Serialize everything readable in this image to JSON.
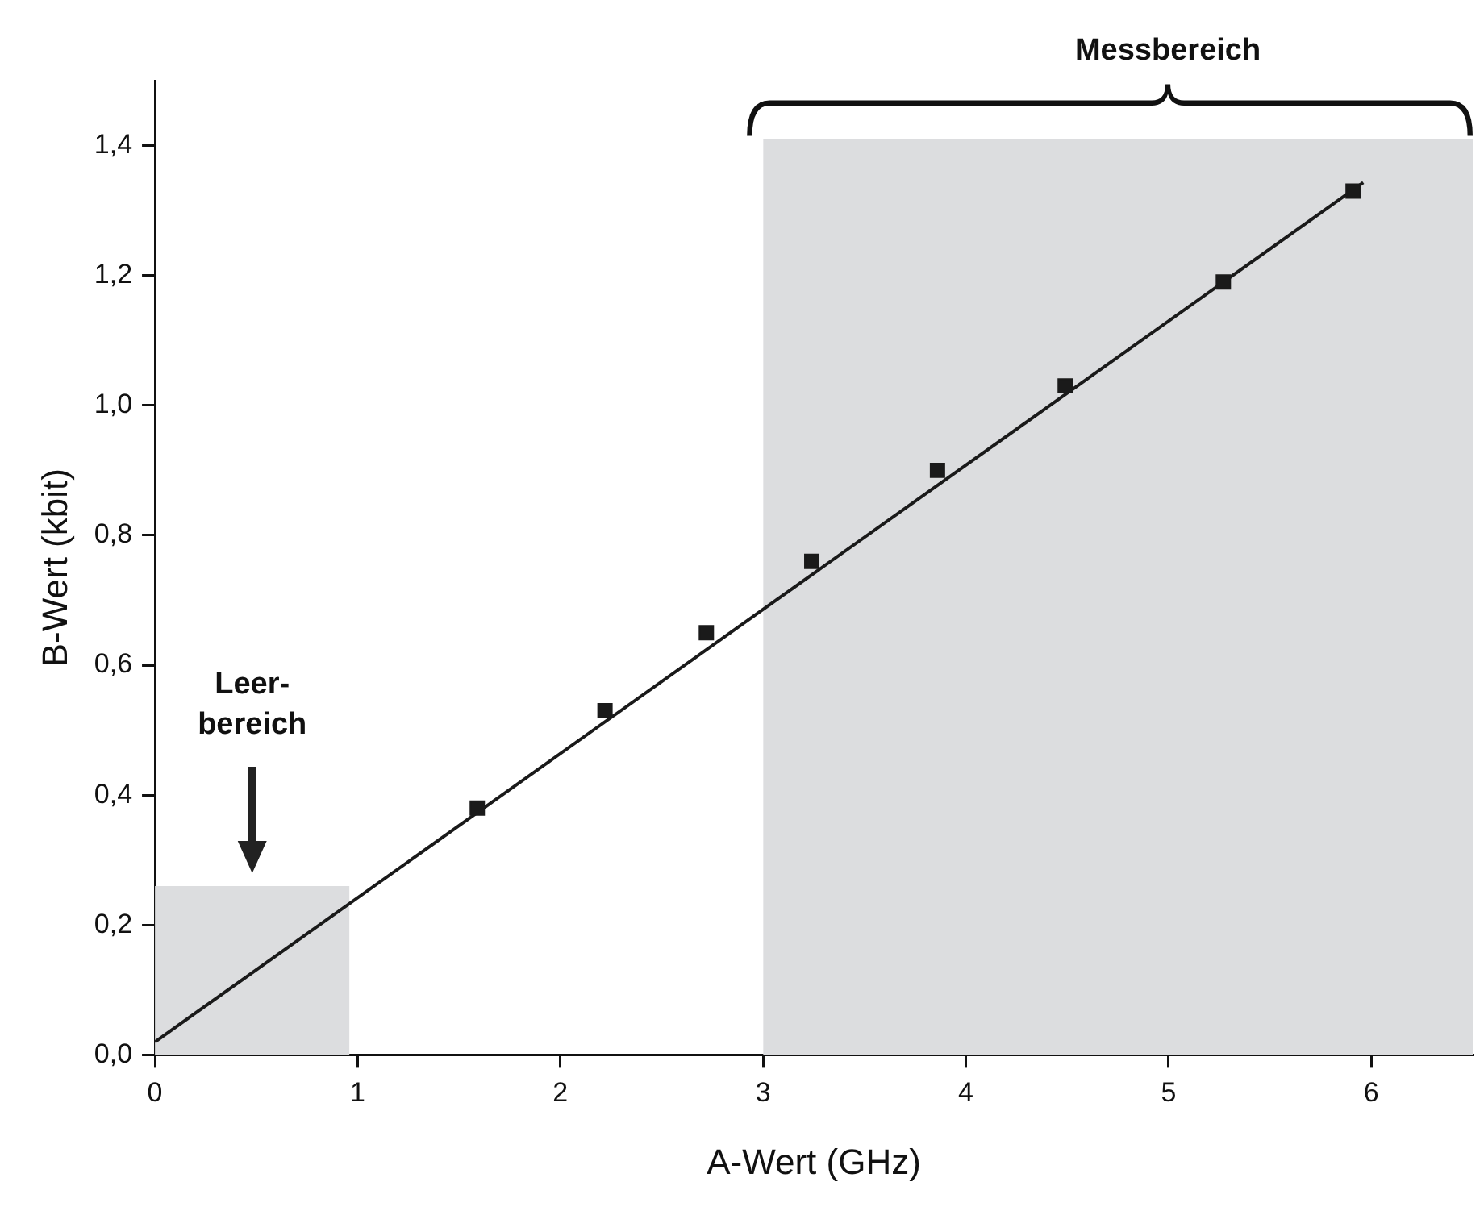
{
  "chart_data": {
    "type": "scatter",
    "xlabel": "A-Wert (GHz)",
    "ylabel": "B-Wert (kbit)",
    "xlim": [
      0,
      6.5
    ],
    "xticks": [
      0,
      1,
      2,
      3,
      4,
      5,
      6
    ],
    "ylim": [
      0,
      1.5
    ],
    "yticks": [
      {
        "value": 0,
        "label": "0,0"
      },
      {
        "value": 0.2,
        "label": "0,2"
      },
      {
        "value": 0.4,
        "label": "0,4"
      },
      {
        "value": 0.6,
        "label": "0,6"
      },
      {
        "value": 0.8,
        "label": "0,8"
      },
      {
        "value": 1.0,
        "label": "1,0"
      },
      {
        "value": 1.2,
        "label": "1,2"
      },
      {
        "value": 1.4,
        "label": "1,4"
      }
    ],
    "marker": "square",
    "legend": false,
    "grid": false,
    "annotations": [
      "Leer-\nbereich",
      "Messbereich"
    ],
    "series": [
      {
        "type": "area",
        "marker": "none",
        "color": "#dcdddf",
        "x": [
          0,
          0.96
        ],
        "values": [
          0.26,
          0.26
        ]
      },
      {
        "type": "area",
        "marker": "none",
        "color": "#dcdddf",
        "x": [
          3.0,
          6.5
        ],
        "values": [
          1.41,
          1.41
        ]
      },
      {
        "type": "line",
        "marker": "none",
        "color": "#1a1a1a",
        "x": [
          0,
          5.96
        ],
        "values": [
          0.02,
          1.343
        ]
      },
      {
        "color": "#1a1a1a",
        "x": [
          1.59,
          2.22,
          2.72,
          3.24,
          3.86,
          4.49,
          5.27,
          5.91
        ],
        "values": [
          0.38,
          0.53,
          0.65,
          0.76,
          0.9,
          1.03,
          1.19,
          1.33
        ]
      }
    ]
  }
}
